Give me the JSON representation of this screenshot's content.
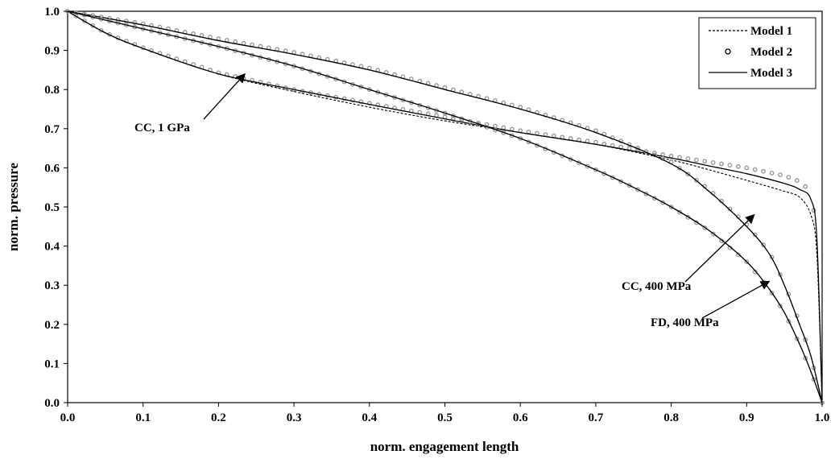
{
  "chart_data": {
    "type": "line",
    "title": "",
    "xlabel": "norm. engagement length",
    "ylabel": "norm. pressure",
    "xlim": [
      0,
      1
    ],
    "ylim": [
      0,
      1
    ],
    "x_ticks": [
      "0.0",
      "0.1",
      "0.2",
      "0.3",
      "0.4",
      "0.5",
      "0.6",
      "0.7",
      "0.8",
      "0.9",
      "1.0"
    ],
    "y_ticks": [
      "0.0",
      "0.1",
      "0.2",
      "0.3",
      "0.4",
      "0.5",
      "0.6",
      "0.7",
      "0.8",
      "0.9",
      "1.0"
    ],
    "grid": false,
    "legend": {
      "placement": "top-right",
      "entries": [
        {
          "label": "Model 1",
          "style": "dashed",
          "color": "#000000"
        },
        {
          "label": "Model 2",
          "style": "circle-marker",
          "color": "#000000"
        },
        {
          "label": "Model 3",
          "style": "solid",
          "color": "#000000"
        }
      ]
    },
    "series": [
      {
        "curve": "CC, 1 GPa",
        "model1": {
          "x": [
            0,
            0.05,
            0.1,
            0.2,
            0.3,
            0.4,
            0.5,
            0.6,
            0.7,
            0.8,
            0.85,
            0.9,
            0.95,
            0.97,
            0.985,
            0.993,
            1.0
          ],
          "y": [
            1,
            0.945,
            0.905,
            0.84,
            0.795,
            0.755,
            0.72,
            0.69,
            0.66,
            0.62,
            0.595,
            0.568,
            0.54,
            0.525,
            0.48,
            0.38,
            0.0
          ]
        },
        "model2": {
          "x": [
            0,
            0.05,
            0.1,
            0.2,
            0.3,
            0.4,
            0.5,
            0.6,
            0.7,
            0.8,
            0.85,
            0.9,
            0.95,
            0.97,
            0.985,
            0.993,
            1.0
          ],
          "y": [
            1,
            0.945,
            0.907,
            0.843,
            0.8,
            0.765,
            0.73,
            0.695,
            0.665,
            0.63,
            0.615,
            0.6,
            0.58,
            0.565,
            0.54,
            0.44,
            0.0
          ]
        },
        "model3": {
          "x": [
            0,
            0.05,
            0.1,
            0.2,
            0.3,
            0.4,
            0.5,
            0.6,
            0.7,
            0.8,
            0.85,
            0.9,
            0.95,
            0.97,
            0.985,
            0.993,
            1.0
          ],
          "y": [
            1,
            0.945,
            0.905,
            0.84,
            0.8,
            0.762,
            0.725,
            0.69,
            0.66,
            0.625,
            0.605,
            0.585,
            0.56,
            0.545,
            0.52,
            0.42,
            0.0
          ]
        }
      },
      {
        "curve": "CC, 400 MPa",
        "model1": {
          "x": [
            0,
            0.1,
            0.2,
            0.3,
            0.4,
            0.5,
            0.6,
            0.7,
            0.8,
            0.85,
            0.9,
            0.93,
            0.95,
            0.97,
            0.985,
            1.0
          ],
          "y": [
            1,
            0.965,
            0.925,
            0.89,
            0.85,
            0.8,
            0.75,
            0.69,
            0.61,
            0.54,
            0.45,
            0.38,
            0.3,
            0.2,
            0.12,
            0.0
          ]
        },
        "model2": {
          "x": [
            0,
            0.1,
            0.2,
            0.3,
            0.4,
            0.5,
            0.6,
            0.7,
            0.8,
            0.85,
            0.9,
            0.93,
            0.95,
            0.97,
            0.985,
            1.0
          ],
          "y": [
            1,
            0.968,
            0.93,
            0.895,
            0.855,
            0.805,
            0.755,
            0.695,
            0.615,
            0.545,
            0.455,
            0.385,
            0.305,
            0.205,
            0.12,
            0.0
          ]
        },
        "model3": {
          "x": [
            0,
            0.1,
            0.2,
            0.3,
            0.4,
            0.5,
            0.6,
            0.7,
            0.8,
            0.85,
            0.9,
            0.93,
            0.95,
            0.97,
            0.985,
            1.0
          ],
          "y": [
            1,
            0.965,
            0.925,
            0.89,
            0.85,
            0.8,
            0.75,
            0.69,
            0.61,
            0.54,
            0.45,
            0.38,
            0.3,
            0.2,
            0.12,
            0.0
          ]
        }
      },
      {
        "curve": "FD, 400 MPa",
        "model1": {
          "x": [
            0,
            0.1,
            0.2,
            0.3,
            0.4,
            0.5,
            0.6,
            0.7,
            0.75,
            0.8,
            0.85,
            0.9,
            0.93,
            0.95,
            0.97,
            0.985,
            1.0
          ],
          "y": [
            1,
            0.955,
            0.91,
            0.86,
            0.8,
            0.74,
            0.675,
            0.595,
            0.55,
            0.5,
            0.44,
            0.36,
            0.29,
            0.23,
            0.15,
            0.08,
            0.0
          ]
        },
        "model2": {
          "x": [
            0,
            0.1,
            0.2,
            0.3,
            0.4,
            0.5,
            0.6,
            0.7,
            0.75,
            0.8,
            0.85,
            0.9,
            0.93,
            0.95,
            0.97,
            0.985,
            1.0
          ],
          "y": [
            1,
            0.955,
            0.91,
            0.86,
            0.8,
            0.74,
            0.675,
            0.595,
            0.55,
            0.5,
            0.44,
            0.36,
            0.29,
            0.23,
            0.15,
            0.08,
            0.0
          ]
        },
        "model3": {
          "x": [
            0,
            0.1,
            0.2,
            0.3,
            0.4,
            0.5,
            0.6,
            0.7,
            0.75,
            0.8,
            0.85,
            0.9,
            0.93,
            0.95,
            0.97,
            0.985,
            1.0
          ],
          "y": [
            1,
            0.955,
            0.91,
            0.86,
            0.8,
            0.74,
            0.675,
            0.595,
            0.55,
            0.5,
            0.44,
            0.36,
            0.29,
            0.23,
            0.15,
            0.08,
            0.0
          ]
        }
      }
    ],
    "annotations": [
      {
        "text": "CC, 1 GPa",
        "tip_x": 0.235,
        "tip_y": 0.84
      },
      {
        "text": "CC, 400 MPa",
        "tip_x": 0.91,
        "tip_y": 0.48
      },
      {
        "text": "FD, 400 MPa",
        "tip_x": 0.93,
        "tip_y": 0.31
      }
    ]
  }
}
